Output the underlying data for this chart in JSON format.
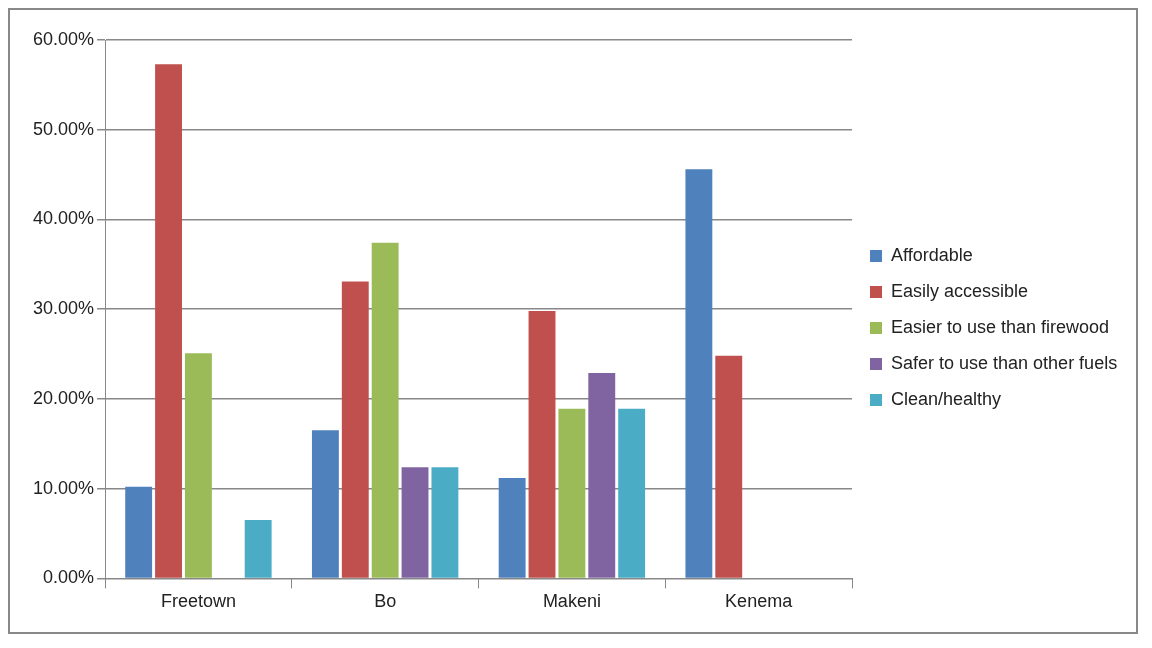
{
  "chart_data": {
    "type": "bar",
    "categories": [
      "Freetown",
      "Bo",
      "Makeni",
      "Kenema"
    ],
    "series": [
      {
        "name": "Affordable",
        "color": "#4f81bd",
        "values": [
          10.2,
          16.5,
          11.2,
          45.6
        ]
      },
      {
        "name": "Easily accessible",
        "color": "#c0504d",
        "values": [
          57.3,
          33.1,
          29.8,
          24.8
        ]
      },
      {
        "name": "Easier to use than firewood",
        "color": "#9bbb59",
        "values": [
          25.1,
          37.4,
          18.9,
          0
        ]
      },
      {
        "name": "Safer to use than other fuels",
        "color": "#8064a2",
        "values": [
          0,
          12.4,
          22.9,
          0
        ]
      },
      {
        "name": "Clean/healthy",
        "color": "#4bacc6",
        "values": [
          6.5,
          12.4,
          18.9,
          0
        ]
      }
    ],
    "ylim": [
      0,
      60
    ],
    "yticks": [
      {
        "value": 0,
        "label": "0.00%"
      },
      {
        "value": 10,
        "label": "10.00%"
      },
      {
        "value": 20,
        "label": "20.00%"
      },
      {
        "value": 30,
        "label": "30.00%"
      },
      {
        "value": 40,
        "label": "40.00%"
      },
      {
        "value": 50,
        "label": "50.00%"
      },
      {
        "value": 60,
        "label": "60.00%"
      }
    ],
    "grid": "y",
    "legend": "right"
  }
}
